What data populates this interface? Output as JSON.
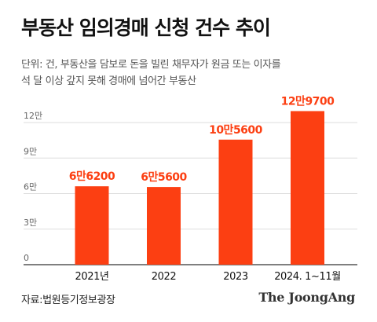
{
  "header": {
    "title": "부동산 임의경매 신청 건수 추이",
    "subtitle_line1": "단위: 건, 부동산을 담보로 돈을 빌린 채무자가 원금 또는 이자를",
    "subtitle_line2": "석 달 이상 갚지 못해 경매에 넘어간 부동산"
  },
  "chart_data": {
    "type": "bar",
    "categories": [
      "2021년",
      "2022",
      "2023",
      "2024. 1~11월"
    ],
    "values": [
      66200,
      65600,
      105600,
      129700
    ],
    "data_labels": [
      "6만6200",
      "6만5600",
      "10만5600",
      "12만9700"
    ],
    "yticks": [
      0,
      30000,
      60000,
      90000,
      120000
    ],
    "ytick_labels": [
      "0",
      "3만",
      "6만",
      "9만",
      "12만"
    ],
    "ylim": [
      0,
      130000
    ],
    "grid": true,
    "bar_color": "#fc3f12"
  },
  "footer": {
    "source": "자료:법원등기정보광장",
    "brand": "The JoongAng"
  }
}
